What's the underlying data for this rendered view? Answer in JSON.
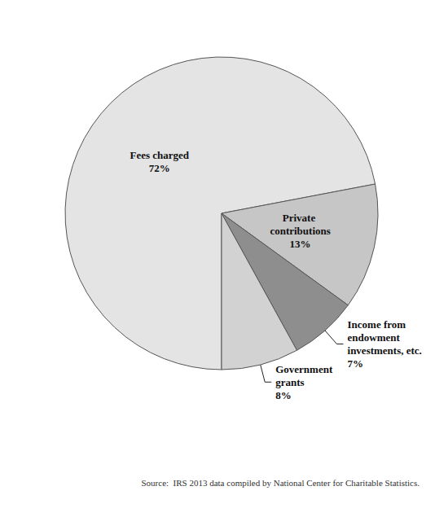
{
  "chart_data": {
    "type": "pie",
    "categories": [
      "Fees charged",
      "Private contributions",
      "Income from endowment investments, etc.",
      "Government grants"
    ],
    "values": [
      72,
      13,
      7,
      8
    ],
    "value_labels": [
      "72%",
      "13%",
      "7%",
      "8%"
    ],
    "colors": [
      "#e4e4e4",
      "#c6c6c6",
      "#8e8e8e",
      "#d2d2d2"
    ],
    "data_labels": true,
    "source": "Source:  IRS 2013 data compiled by National Center for Charitable Statistics."
  }
}
